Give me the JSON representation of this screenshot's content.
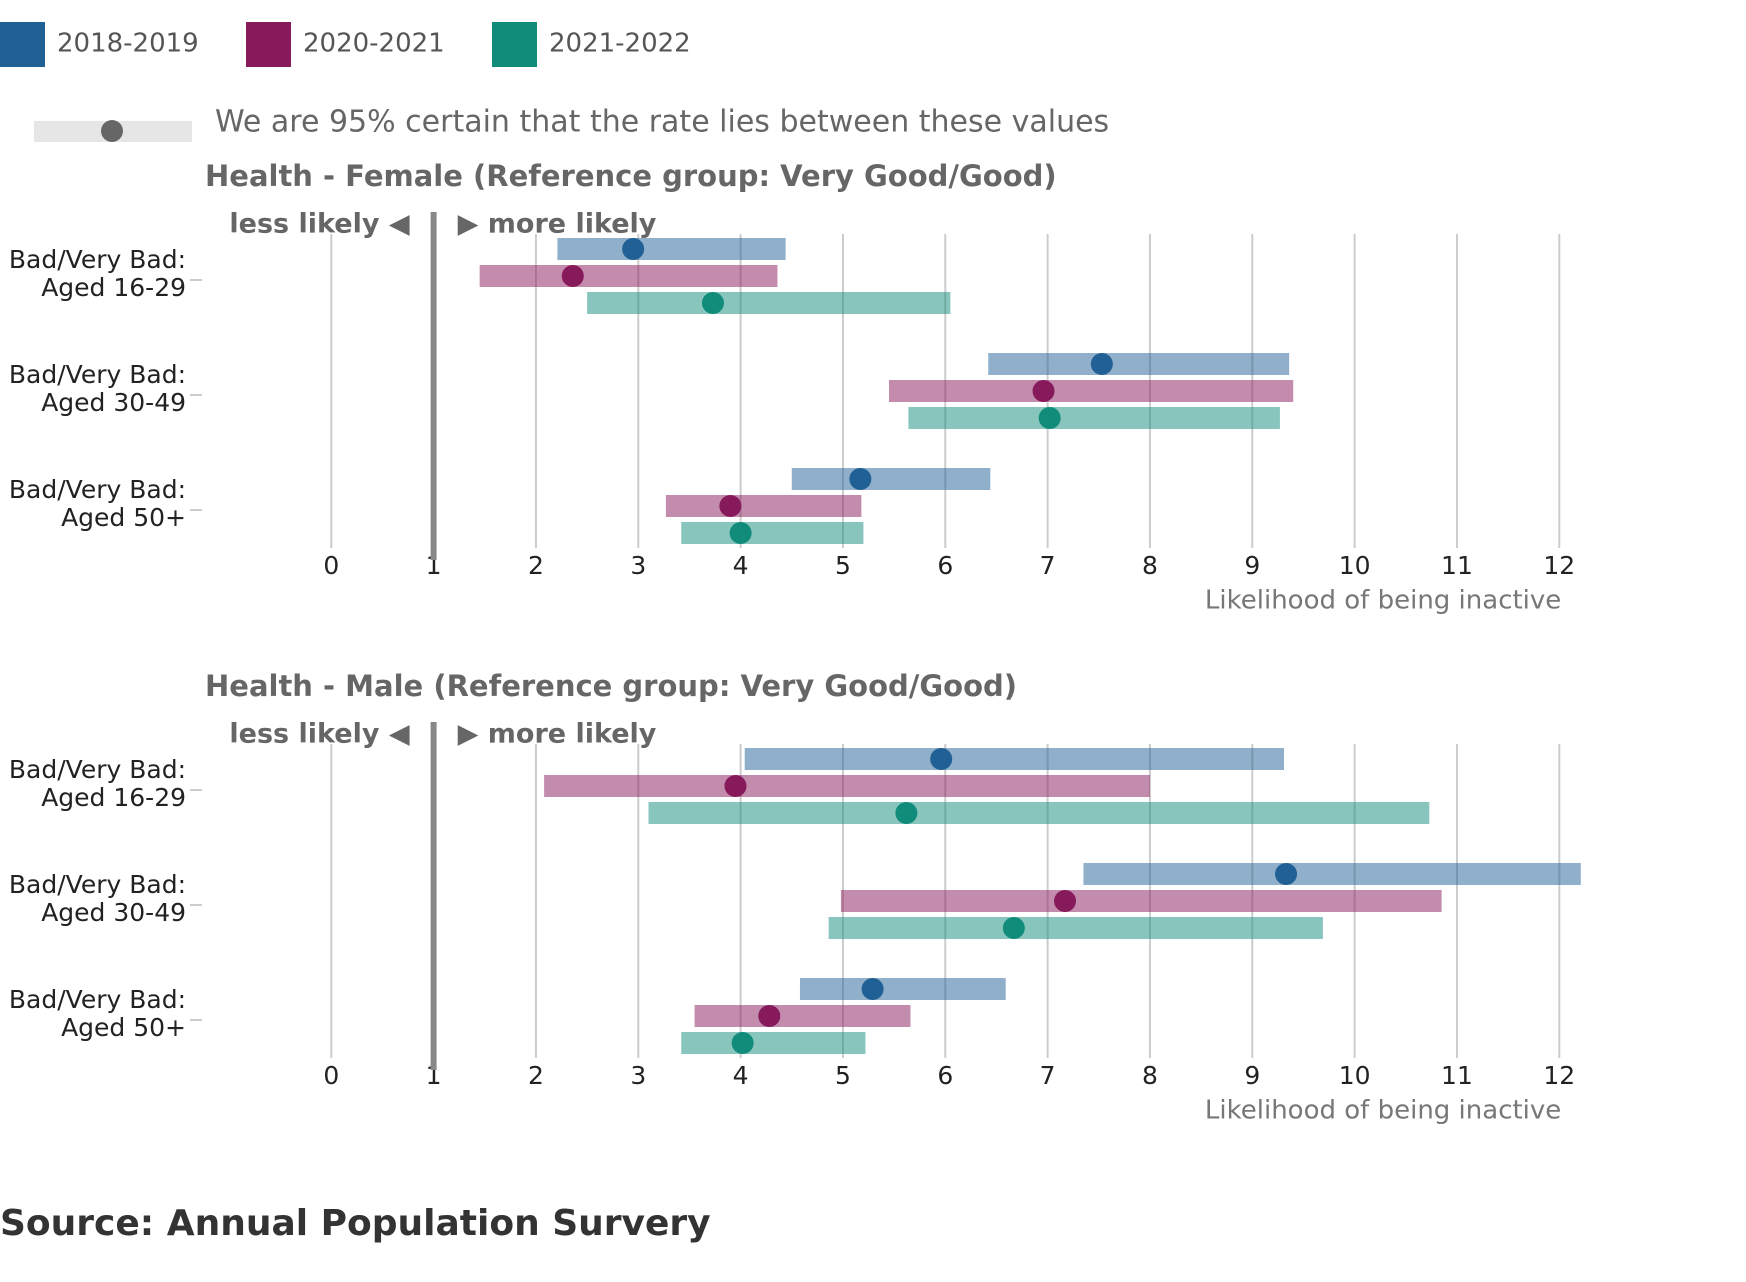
{
  "legend_note": "We are 95% certain that the rate lies between these values",
  "source": "Source: Annual Population Survery",
  "chart_data": [
    {
      "type": "forest",
      "title": "Health - Female (Reference group: Very Good/Good)",
      "annotations": [
        "less likely ◀",
        "▶ more likely"
      ],
      "reference": 1,
      "x_label": "Likelihood of being inactive",
      "xlim": [
        -1.4,
        12.3
      ],
      "xticks": [
        0,
        1,
        2,
        3,
        4,
        5,
        6,
        7,
        8,
        9,
        10,
        11,
        12
      ],
      "grid": true,
      "categories": [
        "Bad/Very Bad:\nAged 16-29",
        "Bad/Very Bad:\nAged 30-49",
        "Bad/Very Bad:\nAged 50+"
      ],
      "series": [
        {
          "name": "2018-2019",
          "color": "#206095",
          "values": [
            2.95,
            7.53,
            5.17
          ],
          "low": [
            2.21,
            6.42,
            4.5
          ],
          "high": [
            4.44,
            9.36,
            6.44
          ]
        },
        {
          "name": "2020-2021",
          "color": "#871a5b",
          "values": [
            2.36,
            6.96,
            3.9
          ],
          "low": [
            1.45,
            5.45,
            3.27
          ],
          "high": [
            4.36,
            9.4,
            5.18
          ]
        },
        {
          "name": "2021-2022",
          "color": "#118c7b",
          "values": [
            3.73,
            7.02,
            4.0
          ],
          "low": [
            2.5,
            5.64,
            3.42
          ],
          "high": [
            6.05,
            9.27,
            5.2
          ]
        }
      ]
    },
    {
      "type": "forest",
      "title": "Health - Male (Reference group: Very Good/Good)",
      "annotations": [
        "less likely ◀",
        "▶ more likely"
      ],
      "reference": 1,
      "x_label": "Likelihood of being inactive",
      "xlim": [
        -1.4,
        12.3
      ],
      "xticks": [
        0,
        1,
        2,
        3,
        4,
        5,
        6,
        7,
        8,
        9,
        10,
        11,
        12
      ],
      "grid": true,
      "categories": [
        "Bad/Very Bad:\nAged 16-29",
        "Bad/Very Bad:\nAged 30-49",
        "Bad/Very Bad:\nAged 50+"
      ],
      "series": [
        {
          "name": "2018-2019",
          "color": "#206095",
          "values": [
            5.96,
            9.33,
            5.29
          ],
          "low": [
            4.04,
            7.35,
            4.58
          ],
          "high": [
            9.31,
            12.21,
            6.59
          ]
        },
        {
          "name": "2020-2021",
          "color": "#871a5b",
          "values": [
            3.95,
            7.17,
            4.28
          ],
          "low": [
            2.08,
            4.98,
            3.55
          ],
          "high": [
            8.0,
            10.85,
            5.66
          ]
        },
        {
          "name": "2021-2022",
          "color": "#118c7b",
          "values": [
            5.62,
            6.67,
            4.02
          ],
          "low": [
            3.1,
            4.86,
            3.42
          ],
          "high": [
            10.73,
            9.69,
            5.22
          ]
        }
      ]
    }
  ]
}
